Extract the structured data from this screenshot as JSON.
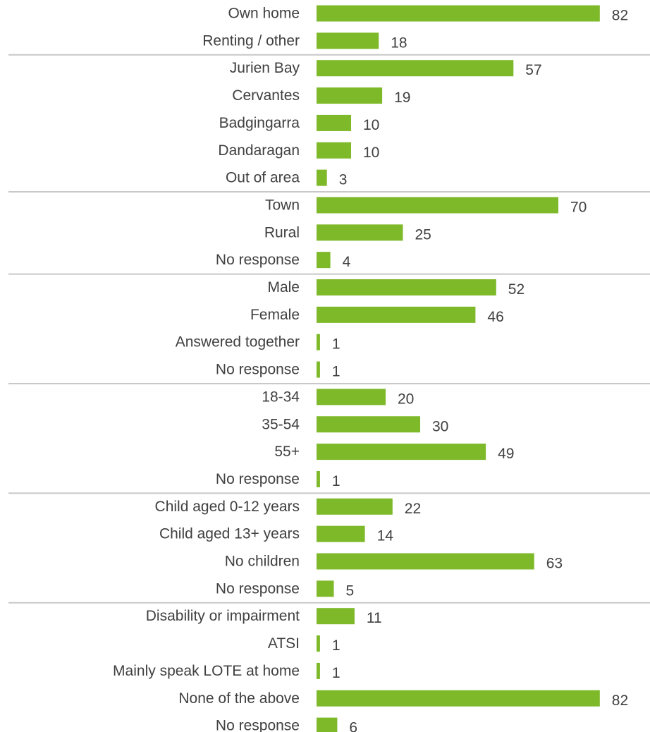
{
  "chart_data": {
    "type": "bar",
    "orientation": "horizontal",
    "bar_color": "#7DB928",
    "separator_color": "#C8C8C8",
    "text_color": "#404040",
    "grid": false,
    "xlim": [
      0,
      100
    ],
    "categories": [
      "Own home",
      "Renting / other",
      "Jurien Bay",
      "Cervantes",
      "Badgingarra",
      "Dandaragan",
      "Out of area",
      "Town",
      "Rural",
      "No response",
      "Male",
      "Female",
      "Answered together",
      "No response",
      "18-34",
      "35-54",
      "55+",
      "No response",
      "Child aged 0-12 years",
      "Child aged 13+ years",
      "No children",
      "No response",
      "Disability or impairment",
      "ATSI",
      "Mainly speak LOTE at home",
      "None of the above",
      "No response"
    ],
    "values": [
      82,
      18,
      57,
      19,
      10,
      10,
      3,
      70,
      25,
      4,
      52,
      46,
      1,
      1,
      20,
      30,
      49,
      1,
      22,
      14,
      63,
      5,
      11,
      1,
      1,
      82,
      6
    ],
    "group_sizes": [
      2,
      5,
      3,
      4,
      4,
      4,
      5
    ]
  }
}
